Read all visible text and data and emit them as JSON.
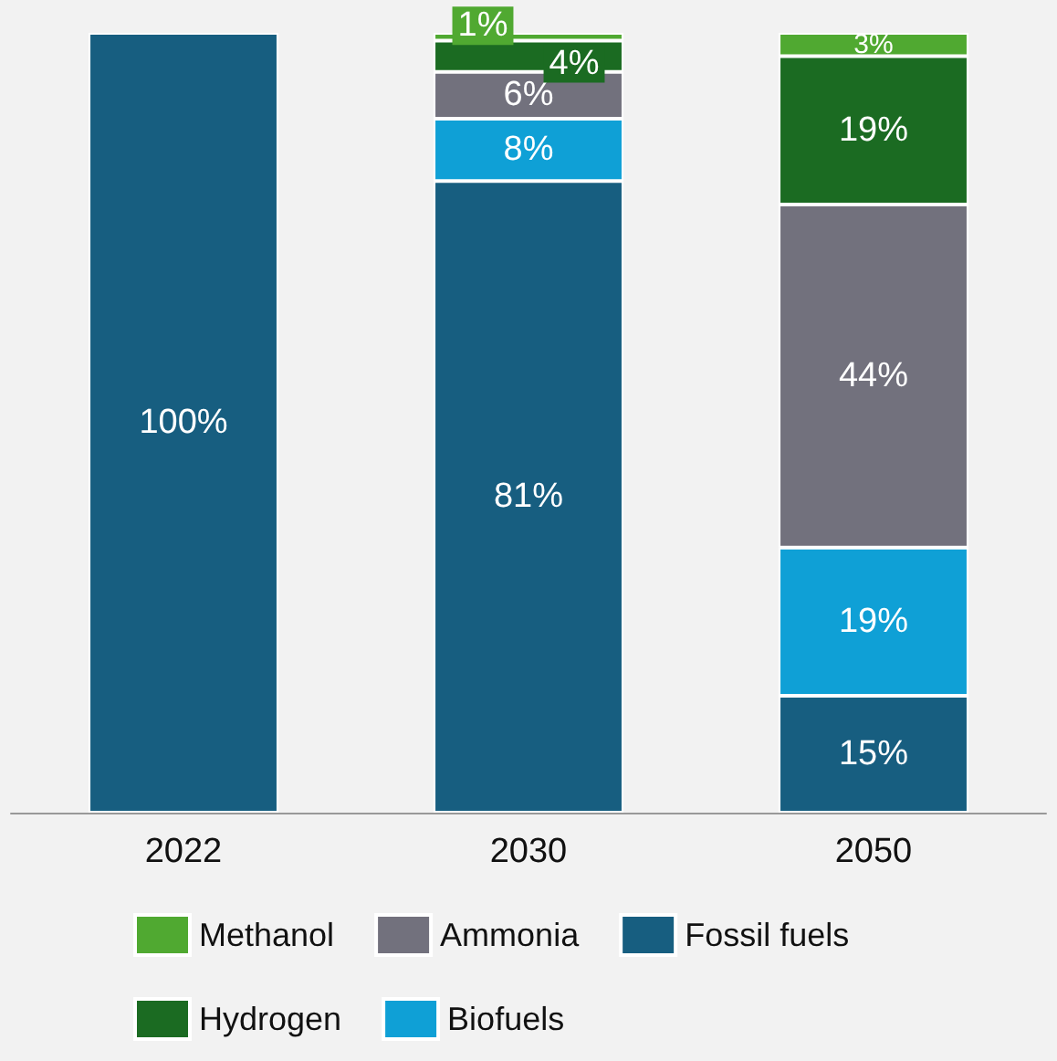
{
  "chart_data": {
    "type": "bar",
    "stacked": true,
    "tick_labels": "x",
    "legend": "bottom",
    "categories": [
      "2022",
      "2030",
      "2050"
    ],
    "series": [
      {
        "name": "Fossil fuels",
        "color": "#175e80",
        "values": [
          100,
          81,
          15
        ],
        "value_labels": [
          "100%",
          "81%",
          "15%"
        ]
      },
      {
        "name": "Biofuels",
        "color": "#0fa0d6",
        "values": [
          null,
          8,
          19
        ],
        "value_labels": [
          null,
          "8%",
          "19%"
        ]
      },
      {
        "name": "Ammonia",
        "color": "#72717d",
        "values": [
          null,
          6,
          44
        ],
        "value_labels": [
          null,
          "6%",
          "44%"
        ]
      },
      {
        "name": "Hydrogen",
        "color": "#1b6b22",
        "values": [
          null,
          4,
          19
        ],
        "value_labels": [
          null,
          "4%",
          "19%"
        ]
      },
      {
        "name": "Methanol",
        "color": "#50a931",
        "values": [
          null,
          1,
          3
        ],
        "value_labels": [
          null,
          "1%",
          "3%"
        ]
      }
    ]
  }
}
